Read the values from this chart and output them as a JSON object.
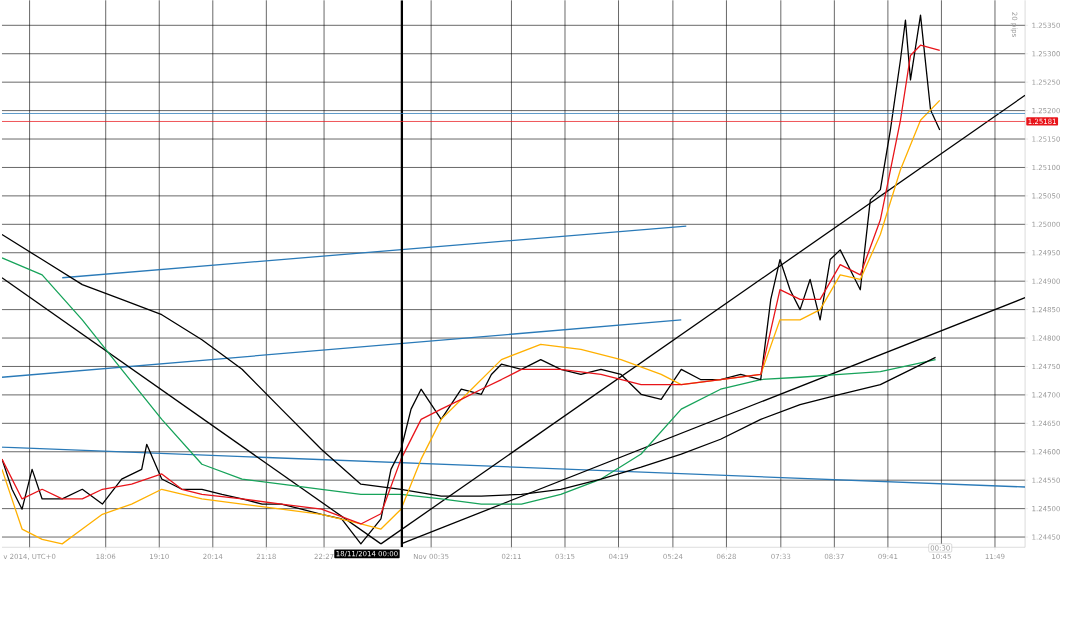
{
  "chart_data": {
    "type": "line",
    "xlim": [
      "2014-11-17T16:02",
      "2014-11-18T12:25"
    ],
    "ylim": [
      1.24432,
      1.25394
    ],
    "grid": true,
    "marker": "none",
    "xticks": [
      {
        "value": "2014-11-17T16:35",
        "label": "v 2014, UTC+0"
      },
      {
        "value": "2014-11-17T18:06",
        "label": "18:06"
      },
      {
        "value": "2014-11-17T19:10",
        "label": "19:10"
      },
      {
        "value": "2014-11-17T20:14",
        "label": "20:14"
      },
      {
        "value": "2014-11-17T21:18",
        "label": "21:18"
      },
      {
        "value": "2014-11-17T22:27",
        "label": "22:27"
      },
      {
        "value": "2014-11-18T00:35",
        "label": "Nov 00:35"
      },
      {
        "value": "2014-11-18T02:11",
        "label": "02:11"
      },
      {
        "value": "2014-11-18T03:15",
        "label": "03:15"
      },
      {
        "value": "2014-11-18T04:19",
        "label": "04:19"
      },
      {
        "value": "2014-11-18T05:24",
        "label": "05:24"
      },
      {
        "value": "2014-11-18T06:28",
        "label": "06:28"
      },
      {
        "value": "2014-11-18T07:33",
        "label": "07:33"
      },
      {
        "value": "2014-11-18T08:37",
        "label": "08:37"
      },
      {
        "value": "2014-11-18T09:41",
        "label": "09:41"
      },
      {
        "value": "2014-11-18T10:45",
        "label": "10:45"
      },
      {
        "value": "2014-11-18T11:49",
        "label": "11:49"
      }
    ],
    "yticks": [
      {
        "value": 1.2445,
        "label": "1.24450"
      },
      {
        "value": 1.245,
        "label": "1.24500"
      },
      {
        "value": 1.2455,
        "label": "1.24550"
      },
      {
        "value": 1.246,
        "label": "1.24600"
      },
      {
        "value": 1.2465,
        "label": "1.24650"
      },
      {
        "value": 1.247,
        "label": "1.24700"
      },
      {
        "value": 1.2475,
        "label": "1.24750"
      },
      {
        "value": 1.248,
        "label": "1.24800"
      },
      {
        "value": 1.2485,
        "label": "1.24850"
      },
      {
        "value": 1.249,
        "label": "1.24900"
      },
      {
        "value": 1.2495,
        "label": "1.24950"
      },
      {
        "value": 1.25,
        "label": "1.25000"
      },
      {
        "value": 1.2505,
        "label": "1.25050"
      },
      {
        "value": 1.251,
        "label": "1.25100"
      },
      {
        "value": 1.2515,
        "label": "1.25150"
      },
      {
        "value": 1.252,
        "label": "1.25200"
      },
      {
        "value": 1.2525,
        "label": "1.25250"
      },
      {
        "value": 1.253,
        "label": "1.25300"
      },
      {
        "value": 1.2535,
        "label": "1.25350"
      }
    ],
    "series": [
      {
        "color": "#2a7ab8",
        "x": [
          "2014-11-17T17:14",
          "2014-11-18T05:40"
        ],
        "values": [
          1.24906,
          1.24997
        ]
      },
      {
        "color": "#2a7ab8",
        "x": [
          "2014-11-17T16:02",
          "2014-11-18T05:34"
        ],
        "values": [
          1.24731,
          1.24832
        ]
      },
      {
        "color": "#2a7ab8",
        "x": [
          "2014-11-17T16:02",
          "2014-11-18T12:25"
        ],
        "values": [
          1.24608,
          1.24538
        ]
      },
      {
        "color": "#000000",
        "x": [
          "2014-11-17T16:02",
          "2014-11-17T23:35"
        ],
        "values": [
          1.24906,
          1.24438
        ]
      },
      {
        "color": "#000000",
        "x": [
          "2014-11-17T23:35",
          "2014-11-18T12:25"
        ],
        "values": [
          1.24438,
          1.25227
        ]
      },
      {
        "color": "#000000",
        "x": [
          "2014-11-17T23:59",
          "2014-11-18T12:25"
        ],
        "values": [
          1.24438,
          1.24871
        ]
      },
      {
        "color": "#17a35a",
        "x": [
          "2014-11-17T16:02",
          "2014-11-17T16:50",
          "2014-11-17T17:38",
          "2014-11-17T18:25",
          "2014-11-17T19:13",
          "2014-11-17T20:01",
          "2014-11-17T20:49",
          "2014-11-17T21:36",
          "2014-11-17T22:24",
          "2014-11-17T23:11",
          "2014-11-17T23:59",
          "2014-11-18T00:47",
          "2014-11-18T01:35",
          "2014-11-18T02:23",
          "2014-11-18T03:10",
          "2014-11-18T03:58",
          "2014-11-18T04:46",
          "2014-11-18T05:34",
          "2014-11-18T06:21",
          "2014-11-18T07:09",
          "2014-11-18T07:56",
          "2014-11-18T08:44",
          "2014-11-18T09:32",
          "2014-11-18T10:38"
        ],
        "values": [
          1.24941,
          1.24911,
          1.24832,
          1.24745,
          1.24657,
          1.24578,
          1.24552,
          1.24543,
          1.24534,
          1.24525,
          1.24525,
          1.24517,
          1.24508,
          1.24508,
          1.24525,
          1.24552,
          1.24596,
          1.24675,
          1.2471,
          1.24727,
          1.24731,
          1.24736,
          1.24741,
          1.24762
        ]
      },
      {
        "color": "#000000",
        "x": [
          "2014-11-17T16:02",
          "2014-11-17T16:50",
          "2014-11-17T17:38",
          "2014-11-17T18:25",
          "2014-11-17T19:13",
          "2014-11-17T20:01",
          "2014-11-17T20:49",
          "2014-11-17T21:36",
          "2014-11-17T22:24",
          "2014-11-17T23:11",
          "2014-11-17T23:59",
          "2014-11-18T00:47",
          "2014-11-18T01:35",
          "2014-11-18T02:23",
          "2014-11-18T03:10",
          "2014-11-18T03:58",
          "2014-11-18T04:46",
          "2014-11-18T05:34",
          "2014-11-18T06:21",
          "2014-11-18T07:09",
          "2014-11-18T07:56",
          "2014-11-18T08:44",
          "2014-11-18T09:32",
          "2014-11-18T10:38"
        ],
        "values": [
          1.24982,
          1.24938,
          1.24894,
          1.24868,
          1.24841,
          1.24797,
          1.24745,
          1.24675,
          1.24604,
          1.24543,
          1.24534,
          1.24522,
          1.24522,
          1.24525,
          1.24534,
          1.24552,
          1.24573,
          1.24596,
          1.24622,
          1.24657,
          1.24683,
          1.24701,
          1.24718,
          1.24766
        ]
      },
      {
        "color": "#000000",
        "x": [
          "2014-11-17T16:02",
          "2014-11-17T16:14",
          "2014-11-17T16:26",
          "2014-11-17T16:38",
          "2014-11-17T16:50",
          "2014-11-17T17:14",
          "2014-11-17T17:38",
          "2014-11-17T18:02",
          "2014-11-17T18:25",
          "2014-11-17T18:49",
          "2014-11-17T18:55",
          "2014-11-17T19:13",
          "2014-11-17T19:37",
          "2014-11-17T20:01",
          "2014-11-17T20:25",
          "2014-11-17T20:49",
          "2014-11-17T21:13",
          "2014-11-17T21:36",
          "2014-11-17T22:00",
          "2014-11-17T22:24",
          "2014-11-17T22:48",
          "2014-11-17T23:11",
          "2014-11-17T23:35",
          "2014-11-17T23:47",
          "2014-11-17T23:59",
          "2014-11-18T00:11",
          "2014-11-18T00:23",
          "2014-11-18T00:47",
          "2014-11-18T01:11",
          "2014-11-18T01:35",
          "2014-11-18T01:47",
          "2014-11-18T01:59",
          "2014-11-18T02:23",
          "2014-11-18T02:46",
          "2014-11-18T03:10",
          "2014-11-18T03:34",
          "2014-11-18T03:58",
          "2014-11-18T04:22",
          "2014-11-18T04:46",
          "2014-11-18T05:10",
          "2014-11-18T05:34",
          "2014-11-18T05:57",
          "2014-11-18T06:21",
          "2014-11-18T06:45",
          "2014-11-18T07:09",
          "2014-11-18T07:21",
          "2014-11-18T07:32",
          "2014-11-18T07:44",
          "2014-11-18T07:56",
          "2014-11-18T08:08",
          "2014-11-18T08:20",
          "2014-11-18T08:32",
          "2014-11-18T08:44",
          "2014-11-18T08:56",
          "2014-11-18T09:08",
          "2014-11-18T09:20",
          "2014-11-18T09:32",
          "2014-11-18T09:44",
          "2014-11-18T09:56",
          "2014-11-18T10:02",
          "2014-11-18T10:08",
          "2014-11-18T10:20",
          "2014-11-18T10:32",
          "2014-11-18T10:43"
        ],
        "values": [
          1.24587,
          1.24534,
          1.24499,
          1.24569,
          1.24517,
          1.24517,
          1.24534,
          1.24508,
          1.24552,
          1.24569,
          1.24613,
          1.24552,
          1.24534,
          1.24534,
          1.24525,
          1.24517,
          1.24508,
          1.24508,
          1.24499,
          1.2449,
          1.24482,
          1.24438,
          1.24482,
          1.24569,
          1.24604,
          1.24675,
          1.2471,
          1.24657,
          1.2471,
          1.24701,
          1.24736,
          1.24754,
          1.24745,
          1.24762,
          1.24745,
          1.24736,
          1.24745,
          1.24736,
          1.24701,
          1.24692,
          1.24745,
          1.24727,
          1.24727,
          1.24736,
          1.24727,
          1.24868,
          1.24938,
          1.24885,
          1.2485,
          1.24903,
          1.24832,
          1.24938,
          1.24955,
          1.2492,
          1.24885,
          1.25043,
          1.25061,
          1.25166,
          1.25289,
          1.25359,
          1.25254,
          1.25368,
          1.25201,
          1.25166
        ]
      },
      {
        "color": "#ffb000",
        "x": [
          "2014-11-17T16:02",
          "2014-11-17T16:26",
          "2014-11-17T16:50",
          "2014-11-17T17:14",
          "2014-11-17T17:38",
          "2014-11-17T18:02",
          "2014-11-17T18:37",
          "2014-11-17T19:13",
          "2014-11-17T20:01",
          "2014-11-17T20:49",
          "2014-11-17T21:36",
          "2014-11-17T22:24",
          "2014-11-17T23:11",
          "2014-11-17T23:35",
          "2014-11-17T23:59",
          "2014-11-18T00:23",
          "2014-11-18T00:47",
          "2014-11-18T01:11",
          "2014-11-18T01:35",
          "2014-11-18T01:59",
          "2014-11-18T02:46",
          "2014-11-18T03:34",
          "2014-11-18T04:22",
          "2014-11-18T05:10",
          "2014-11-18T05:34",
          "2014-11-18T06:21",
          "2014-11-18T07:09",
          "2014-11-18T07:32",
          "2014-11-18T07:56",
          "2014-11-18T08:20",
          "2014-11-18T08:44",
          "2014-11-18T09:08",
          "2014-11-18T09:32",
          "2014-11-18T09:56",
          "2014-11-18T10:20",
          "2014-11-18T10:43"
        ],
        "values": [
          1.24569,
          1.24464,
          1.24446,
          1.24438,
          1.24464,
          1.2449,
          1.24508,
          1.24534,
          1.24517,
          1.24508,
          1.24499,
          1.2449,
          1.24473,
          1.24464,
          1.24499,
          1.24587,
          1.24657,
          1.24692,
          1.24727,
          1.24762,
          1.24789,
          1.2478,
          1.24762,
          1.24736,
          1.24718,
          1.24727,
          1.24736,
          1.24832,
          1.24832,
          1.2485,
          1.24911,
          1.24903,
          1.24982,
          1.25096,
          1.25183,
          1.25218
        ]
      },
      {
        "color": "#e8141a",
        "x": [
          "2014-11-17T16:02",
          "2014-11-17T16:26",
          "2014-11-17T16:50",
          "2014-11-17T17:14",
          "2014-11-17T17:38",
          "2014-11-17T18:02",
          "2014-11-17T18:37",
          "2014-11-17T19:13",
          "2014-11-17T19:37",
          "2014-11-17T20:01",
          "2014-11-17T20:49",
          "2014-11-17T21:36",
          "2014-11-17T22:24",
          "2014-11-17T23:11",
          "2014-11-17T23:35",
          "2014-11-17T23:59",
          "2014-11-18T00:23",
          "2014-11-18T00:47",
          "2014-11-18T01:11",
          "2014-11-18T01:35",
          "2014-11-18T01:59",
          "2014-11-18T02:23",
          "2014-11-18T03:10",
          "2014-11-18T03:58",
          "2014-11-18T04:46",
          "2014-11-18T05:34",
          "2014-11-18T06:21",
          "2014-11-18T07:09",
          "2014-11-18T07:32",
          "2014-11-18T07:56",
          "2014-11-18T08:20",
          "2014-11-18T08:44",
          "2014-11-18T09:08",
          "2014-11-18T09:32",
          "2014-11-18T09:56",
          "2014-11-18T10:08",
          "2014-11-18T10:20",
          "2014-11-18T10:43"
        ],
        "values": [
          1.24587,
          1.24517,
          1.24534,
          1.24517,
          1.24517,
          1.24534,
          1.24543,
          1.24561,
          1.24534,
          1.24525,
          1.24517,
          1.24508,
          1.24499,
          1.24473,
          1.24491,
          1.24587,
          1.24657,
          1.24675,
          1.24692,
          1.2471,
          1.24727,
          1.24745,
          1.24745,
          1.24736,
          1.24718,
          1.24718,
          1.24727,
          1.24736,
          1.24885,
          1.24868,
          1.24868,
          1.24929,
          1.24911,
          1.25008,
          1.25183,
          1.25297,
          1.25315,
          1.25306
        ]
      }
    ],
    "ref_lines": [
      {
        "axis": "x",
        "value": "2014-11-18T00:00",
        "label": "18/11/2014 00:00",
        "color": "#000000"
      },
      {
        "axis": "y",
        "value": 1.25195,
        "color": "#2a7ab8"
      },
      {
        "axis": "y",
        "value": 1.25181,
        "label": "1.25181",
        "color": "#e8141a"
      }
    ],
    "annotations": [
      "20 pips",
      "00:30"
    ]
  }
}
